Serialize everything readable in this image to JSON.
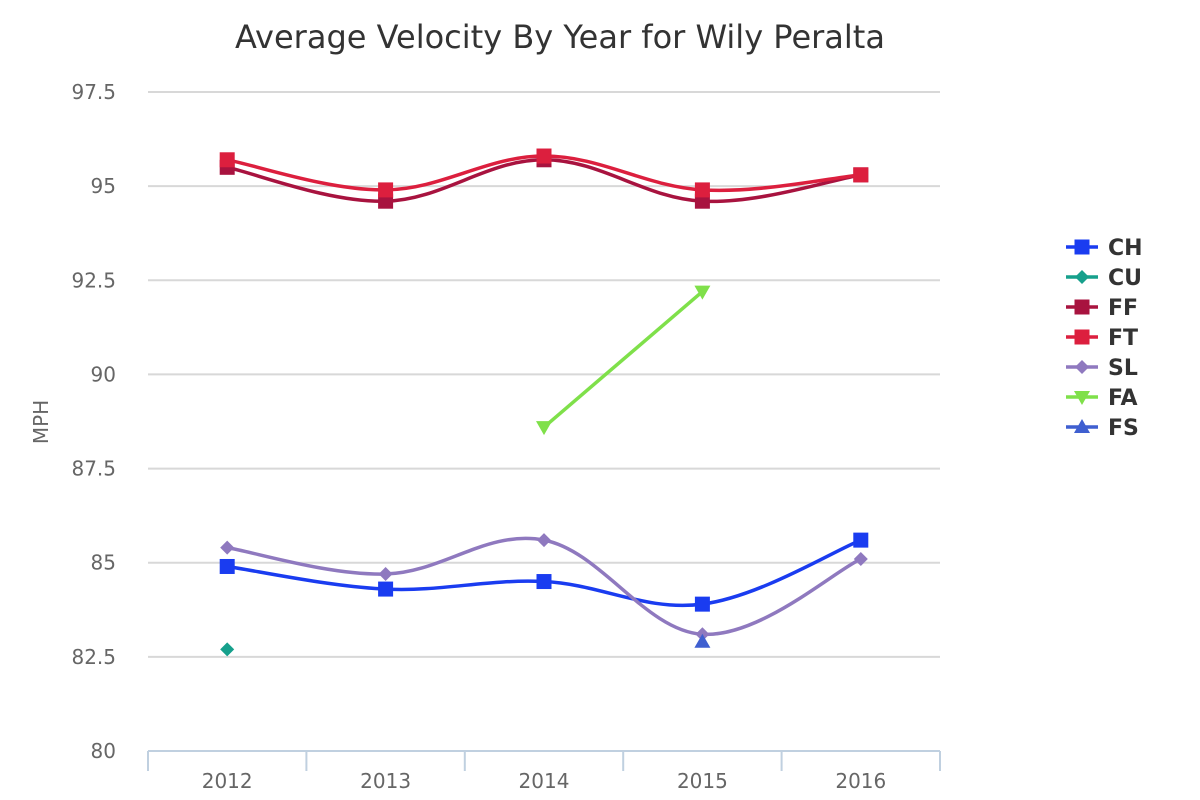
{
  "chart_data": {
    "type": "line",
    "title": "Average Velocity By Year for Wily Peralta",
    "xlabel": "",
    "ylabel": "MPH",
    "ylim": [
      80,
      97.5
    ],
    "yticks": [
      "80",
      "82.5",
      "85",
      "87.5",
      "90",
      "92.5",
      "95",
      "97.5"
    ],
    "categories": [
      "2012",
      "2013",
      "2014",
      "2015",
      "2016"
    ],
    "grid": true,
    "legend_position": "right",
    "series": [
      {
        "name": "CH",
        "color": "#1a3cf0",
        "marker": "square",
        "values": [
          84.9,
          84.3,
          84.5,
          83.9,
          85.6
        ]
      },
      {
        "name": "CU",
        "color": "#16a08c",
        "marker": "diamond",
        "values": [
          82.7,
          null,
          null,
          null,
          null
        ]
      },
      {
        "name": "FF",
        "color": "#a8133f",
        "marker": "square",
        "values": [
          95.5,
          94.6,
          95.7,
          94.6,
          95.3
        ]
      },
      {
        "name": "FT",
        "color": "#dc1f3e",
        "marker": "square",
        "values": [
          95.7,
          94.9,
          95.8,
          94.9,
          95.3
        ]
      },
      {
        "name": "SL",
        "color": "#8f79bf",
        "marker": "diamond",
        "values": [
          85.4,
          84.7,
          85.6,
          83.1,
          85.1
        ]
      },
      {
        "name": "FA",
        "color": "#7fe04a",
        "marker": "triangle-down",
        "values": [
          null,
          null,
          88.6,
          92.2,
          null
        ]
      },
      {
        "name": "FS",
        "color": "#3f5fd0",
        "marker": "triangle",
        "values": [
          null,
          null,
          null,
          82.9,
          null
        ]
      }
    ]
  }
}
